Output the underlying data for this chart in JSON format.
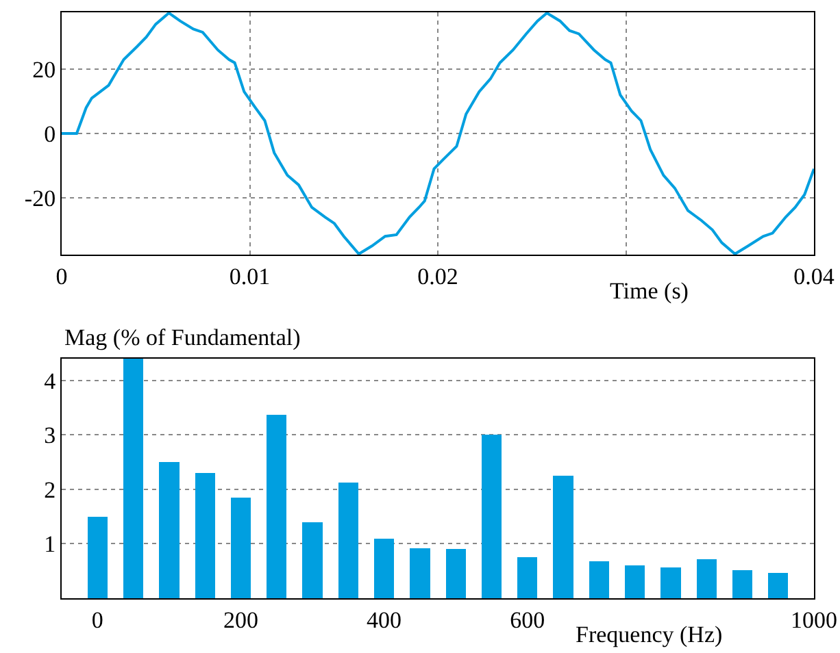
{
  "chart_data": [
    {
      "type": "line",
      "xlabel": "Time (s)",
      "xlim": [
        0,
        0.04
      ],
      "xticks": [
        0,
        0.01,
        0.02,
        {
          "value": 0.03,
          "label": null
        },
        0.04
      ],
      "ylim": [
        -37.7,
        37.7
      ],
      "yticks": [
        -20,
        0,
        20
      ],
      "grid": true,
      "line_style": "solid",
      "marker": "none",
      "x": [
        0,
        0.0008,
        0.0013,
        0.0016,
        0.0025,
        0.003,
        0.0033,
        0.004,
        0.0045,
        0.005,
        0.0057,
        0.0063,
        0.007,
        0.0075,
        0.0083,
        0.0089,
        0.0092,
        0.0097,
        0.0103,
        0.0108,
        0.0113,
        0.012,
        0.0126,
        0.0133,
        0.014,
        0.0145,
        0.015,
        0.0158,
        0.0165,
        0.0172,
        0.0178,
        0.0185,
        0.019,
        0.0193,
        0.0198,
        0.0203,
        0.021,
        0.0215,
        0.0222,
        0.0228,
        0.0233,
        0.024,
        0.0247,
        0.0253,
        0.0258,
        0.0265,
        0.027,
        0.0275,
        0.0283,
        0.0289,
        0.0292,
        0.0297,
        0.0303,
        0.0308,
        0.0313,
        0.032,
        0.0326,
        0.0333,
        0.034,
        0.0346,
        0.0351,
        0.0358,
        0.0365,
        0.0373,
        0.0378,
        0.0385,
        0.039,
        0.0395,
        0.04
      ],
      "series": [
        {
          "color": "#009fdf",
          "values": [
            0,
            0,
            8,
            11,
            15,
            20,
            23,
            27,
            30,
            34,
            37.5,
            35,
            32.5,
            31.5,
            26,
            23,
            22,
            13,
            8,
            4,
            -6,
            -13,
            -16,
            -23,
            -26,
            -28,
            -32,
            -37.5,
            -35,
            -32,
            -31.5,
            -26,
            -23,
            -21,
            -11,
            -8,
            -4,
            6,
            13,
            17,
            22,
            26,
            31,
            35,
            37.5,
            35,
            32,
            31,
            26,
            23,
            22,
            12,
            7,
            4,
            -5,
            -13,
            -17,
            -24,
            -27,
            -30,
            -34,
            -37.5,
            -35,
            -32,
            -31,
            -26,
            -23,
            -19,
            -11
          ]
        }
      ]
    },
    {
      "type": "bar",
      "xlabel": "Frequency (Hz)",
      "ylabel": "Mag (% of Fundamental)",
      "xlim": [
        -50,
        1000
      ],
      "xticks": [
        0,
        200,
        400,
        600,
        1000
      ],
      "ylim": [
        0,
        4.4
      ],
      "yticks": [
        1,
        2,
        3,
        4
      ],
      "grid": "y",
      "x": [
        0,
        50,
        100,
        150,
        200,
        250,
        300,
        350,
        400,
        450,
        500,
        550,
        600,
        650,
        700,
        750,
        800,
        850,
        900,
        950
      ],
      "series": [
        {
          "color": "#009fe0",
          "values": [
            1.5,
            4.4,
            2.5,
            2.3,
            1.85,
            3.37,
            1.4,
            2.12,
            1.1,
            0.92,
            0.9,
            3.0,
            0.75,
            2.25,
            0.68,
            0.6,
            0.57,
            0.72,
            0.52,
            0.47
          ]
        }
      ]
    }
  ]
}
